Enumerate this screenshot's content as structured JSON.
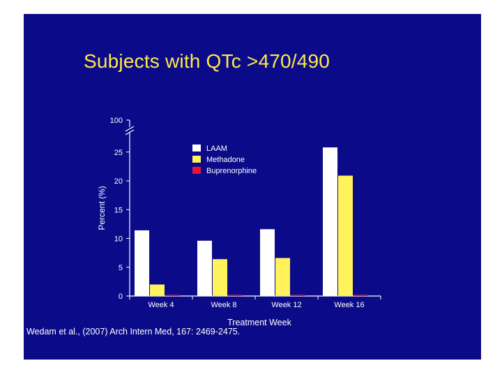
{
  "slide": {
    "title": "Subjects with QTc >470/490",
    "citation": "Wedam et al., (2007) Arch Intern Med, 167: 2469-2475."
  },
  "colors": {
    "background": "#0b0b8a",
    "title": "#ffe84a",
    "axis": "#ffffff"
  },
  "chart_data": {
    "type": "bar",
    "title": "",
    "xlabel": "Treatment Week",
    "ylabel": "Percent (%)",
    "categories": [
      "Week 4",
      "Week 8",
      "Week 12",
      "Week 16"
    ],
    "y_ticks": [
      0,
      5,
      10,
      15,
      20,
      25
    ],
    "y_break_tick": 100,
    "ylim": [
      0,
      25
    ],
    "axis_break": true,
    "grid": false,
    "legend_position": "top-left",
    "series": [
      {
        "name": "LAAM",
        "color": "#ffffff",
        "values": [
          11.4,
          9.6,
          11.6,
          25.8
        ]
      },
      {
        "name": "Methadone",
        "color": "#fff25a",
        "values": [
          2.0,
          6.4,
          6.6,
          20.9
        ]
      },
      {
        "name": "Buprenorphine",
        "color": "#e8143a",
        "values": [
          0.2,
          0.2,
          0.2,
          0.2
        ]
      }
    ]
  }
}
